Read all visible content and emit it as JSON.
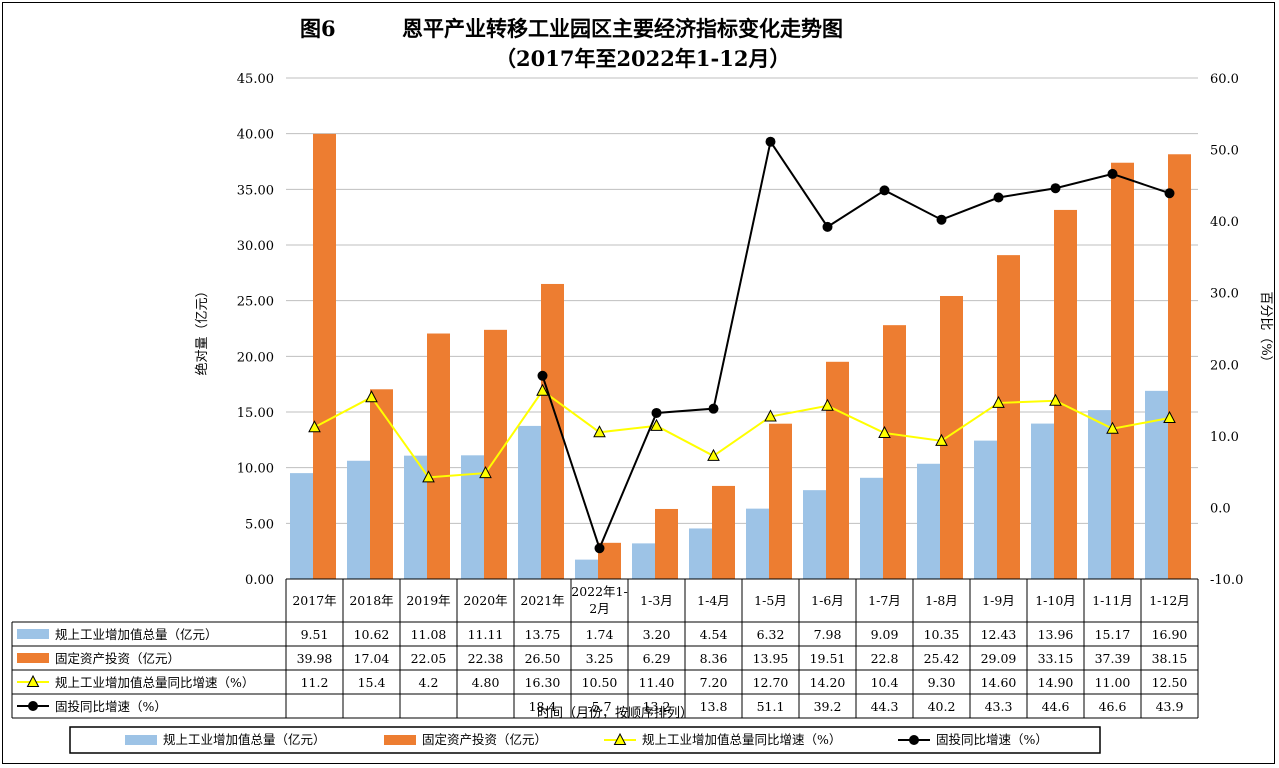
{
  "titles": {
    "fig": "图6",
    "main": "恩平产业转移工业园区主要经济指标变化走势图",
    "sub": "（2017年至2022年1-12月）"
  },
  "colors": {
    "bar1": "#9DC3E6",
    "bar2": "#ED7D31",
    "line1": "#FFFF00",
    "line2": "#000000"
  },
  "chart_data": {
    "type": "bar",
    "categories": [
      "2017年",
      "2018年",
      "2019年",
      "2020年",
      "2021年",
      "2022年1-2月",
      "1-3月",
      "1-4月",
      "1-5月",
      "1-6月",
      "1-7月",
      "1-8月",
      "1-9月",
      "1-10月",
      "1-11月",
      "1-12月"
    ],
    "ylabel": "绝对量（亿元）",
    "ylabel_right": "百分比（%）",
    "xlabel": "时间（月份，按顺序排列）",
    "ylim": [
      0,
      45
    ],
    "y2lim": [
      -10,
      60
    ],
    "yticks": [
      "0.00",
      "5.00",
      "10.00",
      "15.00",
      "20.00",
      "25.00",
      "30.00",
      "35.00",
      "40.00",
      "45.00"
    ],
    "y2ticks": [
      "-10.0",
      "0.0",
      "10.0",
      "20.0",
      "30.0",
      "40.0",
      "50.0",
      "60.0"
    ],
    "series": [
      {
        "name": "规上工业增加值总量（亿元）",
        "kind": "bar",
        "axis": "left",
        "values": [
          9.51,
          10.62,
          11.08,
          11.11,
          13.75,
          1.74,
          3.2,
          4.54,
          6.32,
          7.98,
          9.09,
          10.35,
          12.43,
          13.96,
          15.17,
          16.9
        ],
        "labels": [
          "9.51",
          "10.62",
          "11.08",
          "11.11",
          "13.75",
          "1.74",
          "3.20",
          "4.54",
          "6.32",
          "7.98",
          "9.09",
          "10.35",
          "12.43",
          "13.96",
          "15.17",
          "16.90"
        ]
      },
      {
        "name": "固定资产投资（亿元）",
        "kind": "bar",
        "axis": "left",
        "values": [
          39.98,
          17.04,
          22.05,
          22.38,
          26.5,
          3.25,
          6.29,
          8.36,
          13.95,
          19.51,
          22.8,
          25.42,
          29.09,
          33.15,
          37.39,
          38.15
        ],
        "labels": [
          "39.98",
          "17.04",
          "22.05",
          "22.38",
          "26.50",
          "3.25",
          "6.29",
          "8.36",
          "13.95",
          "19.51",
          "22.8",
          "25.42",
          "29.09",
          "33.15",
          "37.39",
          "38.15"
        ]
      },
      {
        "name": "规上工业增加值总量同比增速（%）",
        "kind": "line-triangle",
        "axis": "right",
        "values": [
          11.2,
          15.4,
          4.2,
          4.8,
          16.3,
          10.5,
          11.4,
          7.2,
          12.7,
          14.2,
          10.4,
          9.3,
          14.6,
          14.9,
          11.0,
          12.5
        ],
        "labels": [
          "11.2",
          "15.4",
          "4.2",
          "4.80",
          "16.30",
          "10.50",
          "11.40",
          "7.20",
          "12.70",
          "14.20",
          "10.4",
          "9.30",
          "14.60",
          "14.90",
          "11.00",
          "12.50"
        ]
      },
      {
        "name": "固投同比增速（%）",
        "kind": "line-circle",
        "axis": "right",
        "values": [
          null,
          null,
          null,
          null,
          18.4,
          -5.7,
          13.2,
          13.8,
          51.1,
          39.2,
          44.3,
          40.2,
          43.3,
          44.6,
          46.6,
          43.9
        ],
        "labels": [
          "",
          "",
          "",
          "",
          "18.4",
          "-5.7",
          "13.2",
          "13.8",
          "51.1",
          "39.2",
          "44.3",
          "40.2",
          "43.3",
          "44.6",
          "46.6",
          "43.9"
        ]
      }
    ],
    "legend": [
      "规上工业增加值总量（亿元）",
      "固定资产投资（亿元）",
      "规上工业增加值总量同比增速（%）",
      "固投同比增速（%）"
    ],
    "legend_position": "bottom",
    "table_rows": [
      "规上工业增加值总量（亿元）",
      "固定资产投资（亿元）",
      "规上工业增加值总量同比增速（%）",
      "固投同比增速（%）"
    ]
  }
}
